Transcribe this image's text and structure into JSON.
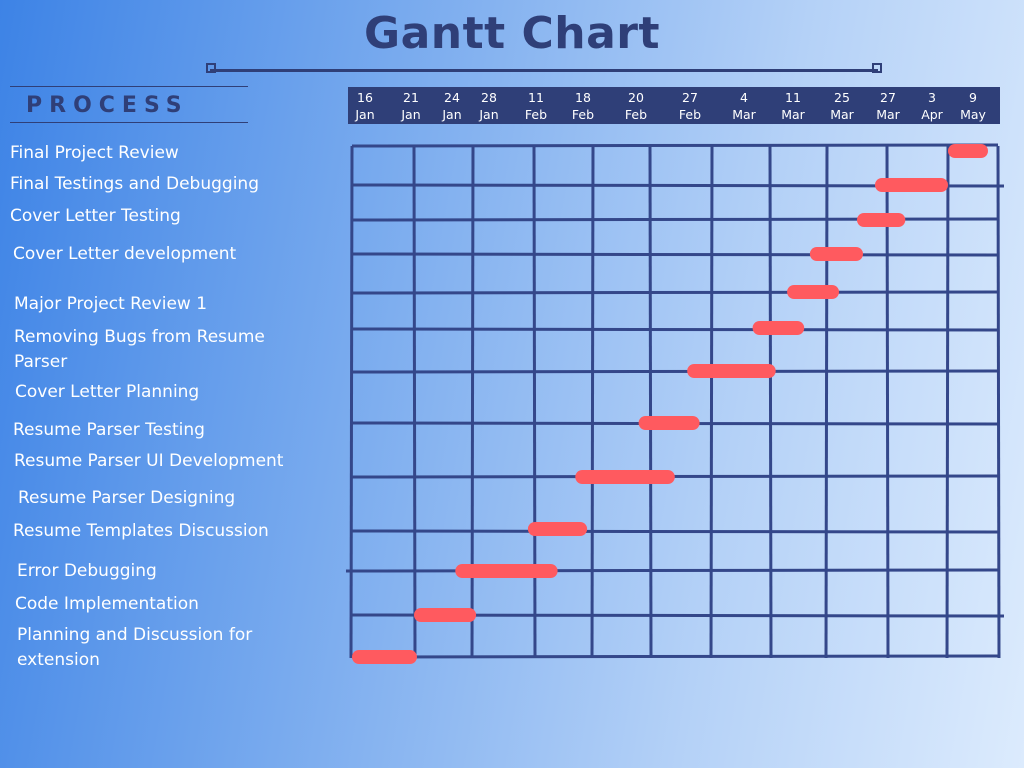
{
  "title": "Gantt Chart",
  "colors": {
    "grid": "#34478a",
    "bar": "#ff5a5f",
    "header": "#2f3f78"
  },
  "process_label": "PROCESS",
  "dates": [
    {
      "day": "16",
      "month": "Jan"
    },
    {
      "day": "21",
      "month": "Jan"
    },
    {
      "day": "24",
      "month": "Jan"
    },
    {
      "day": "28",
      "month": "Jan"
    },
    {
      "day": "11",
      "month": "Feb"
    },
    {
      "day": "18",
      "month": "Feb"
    },
    {
      "day": "20",
      "month": "Feb"
    },
    {
      "day": "27",
      "month": "Feb"
    },
    {
      "day": "4",
      "month": "Mar"
    },
    {
      "day": "11",
      "month": "Mar"
    },
    {
      "day": "25",
      "month": "Mar"
    },
    {
      "day": "27",
      "month": "Mar"
    },
    {
      "day": "3",
      "month": "Apr"
    },
    {
      "day": "9",
      "month": "May"
    }
  ],
  "tasks": [
    {
      "name": "Final Project Review",
      "start_col": 10.0,
      "end_col": 10.8
    },
    {
      "name": "Final Testings and Debugging",
      "start_col": 8.8,
      "end_col": 10.0
    },
    {
      "name": "Cover Letter Testing",
      "start_col": 8.5,
      "end_col": 9.3
    },
    {
      "name": "Cover Letter development",
      "start_col": 7.7,
      "end_col": 8.6
    },
    {
      "name": "Major Project Review 1",
      "start_col": 7.3,
      "end_col": 8.2
    },
    {
      "name": "Removing Bugs from Resume Parser",
      "start_col": 6.7,
      "end_col": 7.6
    },
    {
      "name": "Cover Letter Planning",
      "start_col": 5.6,
      "end_col": 7.1
    },
    {
      "name": "Resume Parser Testing",
      "start_col": 4.8,
      "end_col": 5.8
    },
    {
      "name": "Resume Parser UI Development",
      "start_col": 3.7,
      "end_col": 5.4
    },
    {
      "name": "Resume Parser Designing",
      "start_col": 2.9,
      "end_col": 3.9
    },
    {
      "name": "Resume Templates Discussion",
      "start_col": 1.8,
      "end_col": 3.4
    },
    {
      "name": "Error Debugging",
      "start_col": 1.0,
      "end_col": 2.1
    },
    {
      "name": "Code Implementation",
      "start_col": 0.0,
      "end_col": 1.0
    }
  ]
}
